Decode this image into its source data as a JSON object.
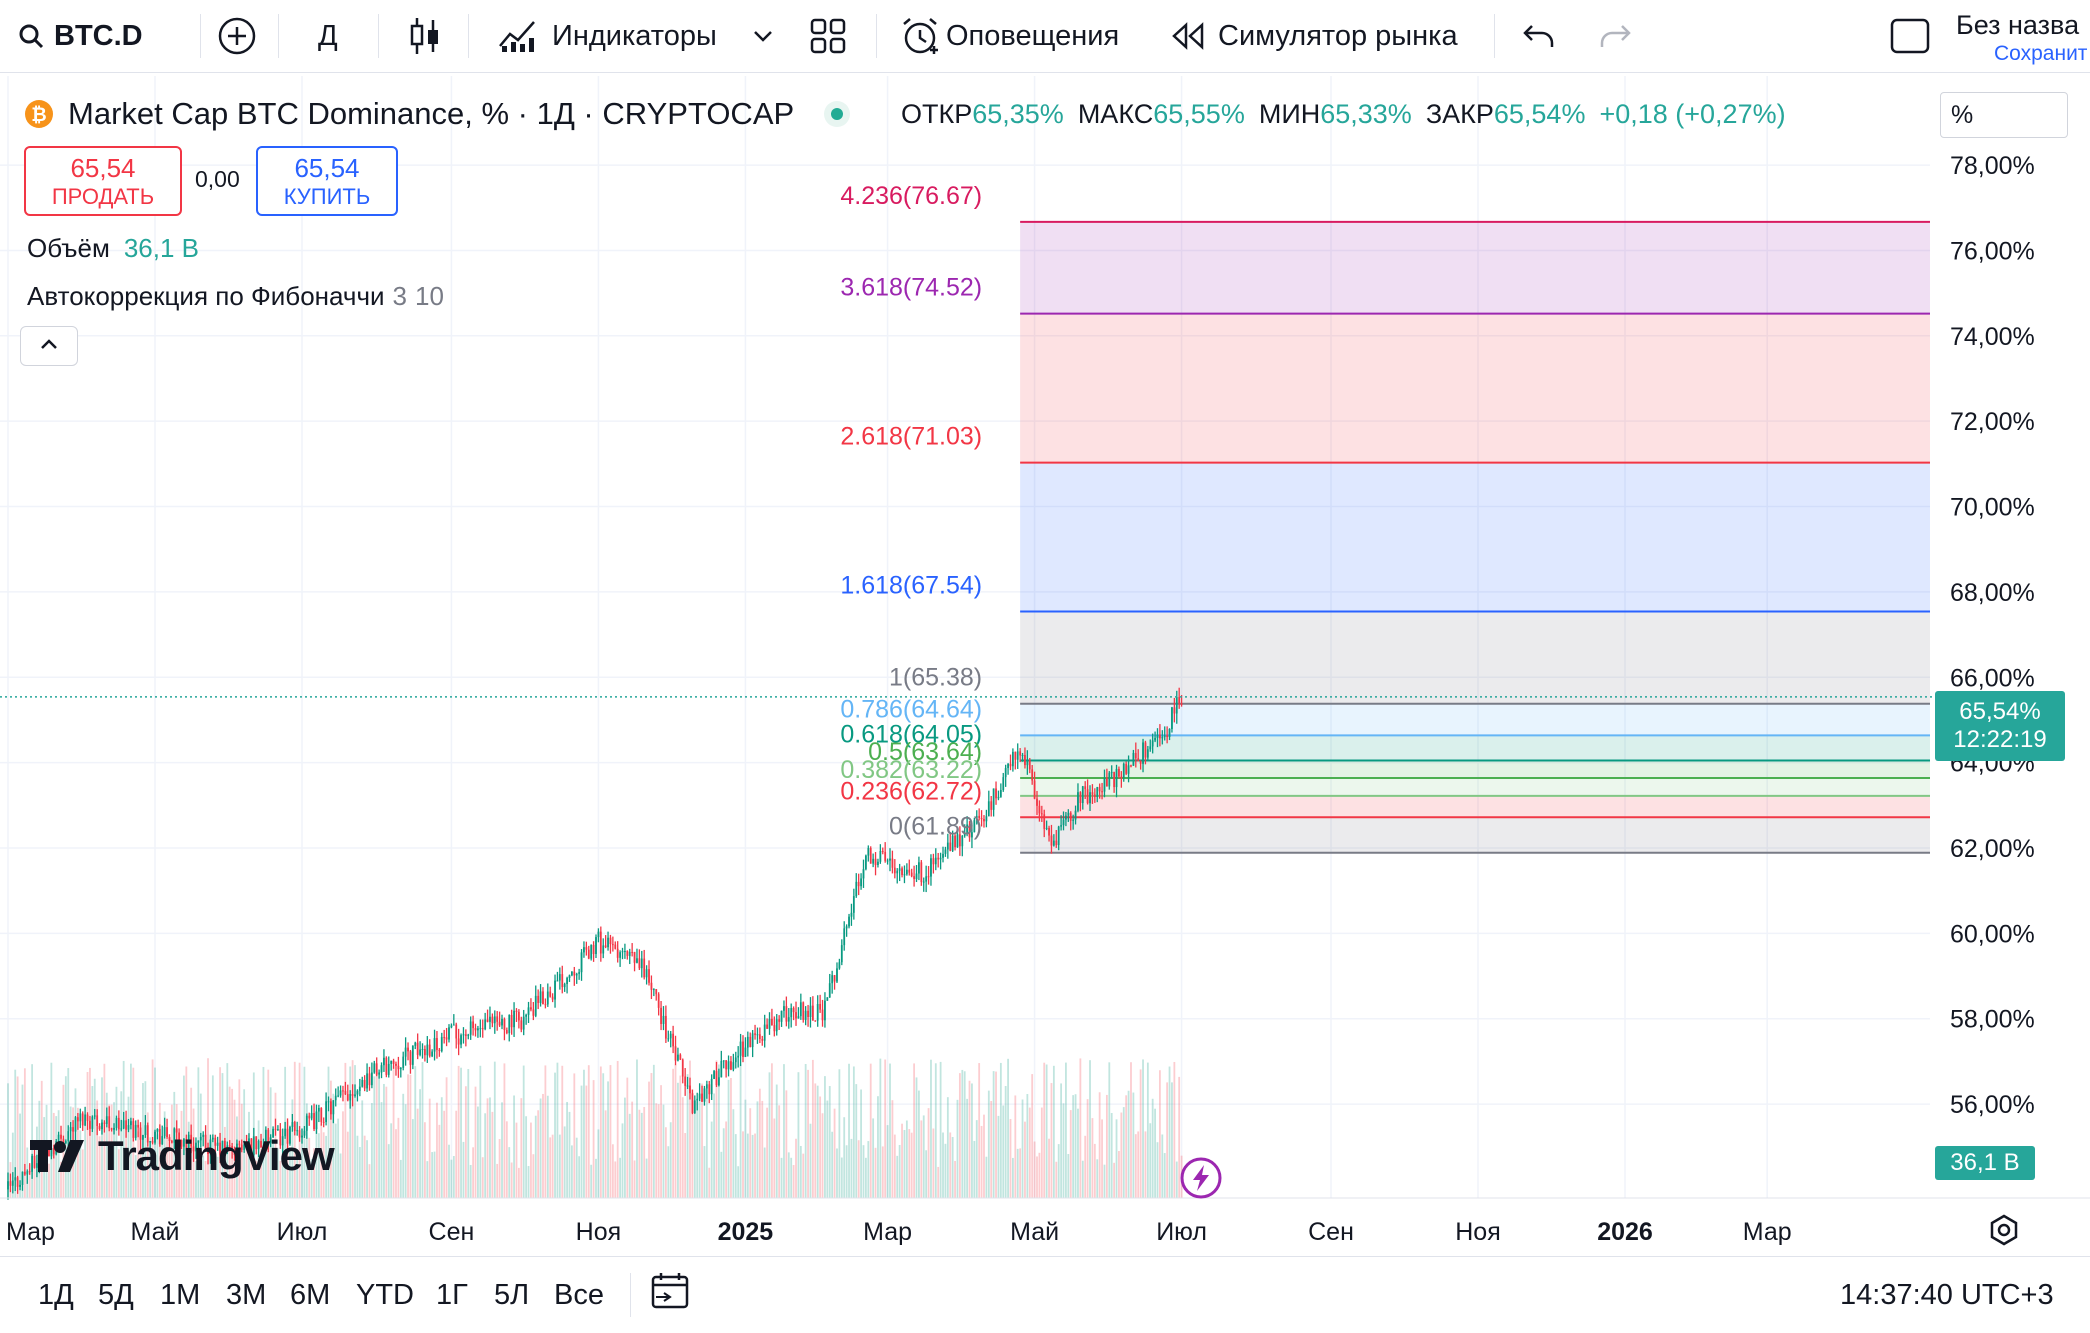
{
  "toolbar": {
    "symbol": "BTC.D",
    "interval": "Д",
    "indicators_label": "Индикаторы",
    "alerts_label": "Оповещения",
    "replay_label": "Симулятор рынка",
    "layout_name": "Без назва",
    "save_label": "Сохранит"
  },
  "legend": {
    "title": "Market Cap BTC Dominance, % · 1Д · CRYPTOCAP",
    "open_label": "ОТКР",
    "open_value": "65,35%",
    "high_label": "МАКС",
    "high_value": "65,55%",
    "low_label": "МИН",
    "low_value": "65,33%",
    "close_label": "ЗАКР",
    "close_value": "65,54%",
    "change": "+0,18 (+0,27%)",
    "sell_price": "65,54",
    "sell_label": "ПРОДАТЬ",
    "spread": "0,00",
    "buy_price": "65,54",
    "buy_label": "КУПИТЬ",
    "volume_label": "Объём",
    "volume_value": "36,1 B",
    "fib_study_label": "Автокоррекция по Фибоначчи",
    "fib_study_p1": "3",
    "fib_study_p2": "10"
  },
  "scale_mode": "%",
  "price_tag": {
    "value": "65,54%",
    "countdown": "12:22:19",
    "color": "#26a69a"
  },
  "volume_tag": {
    "value": "36,1 B",
    "color": "#26a69a"
  },
  "watermark": "TradingView",
  "bottom": {
    "ranges": [
      "1Д",
      "5Д",
      "1М",
      "3М",
      "6М",
      "YTD",
      "1Г",
      "5Л",
      "Все"
    ],
    "clock": "14:37:40 UTC+3"
  },
  "chart_data": {
    "type": "candlestick",
    "title": "Market Cap BTC Dominance, %",
    "interval": "1Д",
    "y_axis": {
      "ticks": [
        "78,00%",
        "76,00%",
        "74,00%",
        "72,00%",
        "70,00%",
        "68,00%",
        "66,00%",
        "64,00%",
        "62,00%",
        "60,00%",
        "58,00%",
        "56,00%"
      ],
      "ylim": [
        53.8,
        78.4
      ]
    },
    "x_axis": {
      "ticks": [
        "Мар",
        "Май",
        "Июл",
        "Сен",
        "Ноя",
        "2025",
        "Мар",
        "Май",
        "Июл",
        "Сен",
        "Ноя",
        "2026",
        "Мар"
      ],
      "bold_ticks": [
        "2025",
        "2026"
      ]
    },
    "series_approx": {
      "dates": [
        "2024-03-01",
        "2024-04-01",
        "2024-05-01",
        "2024-06-01",
        "2024-07-01",
        "2024-08-01",
        "2024-09-01",
        "2024-10-01",
        "2024-11-01",
        "2024-11-20",
        "2024-12-10",
        "2025-01-01",
        "2025-01-20",
        "2025-02-03",
        "2025-02-20",
        "2025-03-15",
        "2025-04-10",
        "2025-04-25",
        "2025-05-08",
        "2025-05-20",
        "2025-06-05",
        "2025-06-25",
        "2025-07-01"
      ],
      "close": [
        54.0,
        55.7,
        55.3,
        54.9,
        55.4,
        56.8,
        57.6,
        58.0,
        59.8,
        59.2,
        56.0,
        57.4,
        58.2,
        58.2,
        61.9,
        61.4,
        62.7,
        64.4,
        62.0,
        63.2,
        63.7,
        64.8,
        65.54
      ]
    },
    "fibonacci": [
      {
        "level": "4.236",
        "price": 76.67,
        "label": "4.236(76.67)",
        "color": "#d81b60"
      },
      {
        "level": "3.618",
        "price": 74.52,
        "label": "3.618(74.52)",
        "color": "#9c27b0"
      },
      {
        "level": "2.618",
        "price": 71.03,
        "label": "2.618(71.03)",
        "color": "#f23645"
      },
      {
        "level": "1.618",
        "price": 67.54,
        "label": "1.618(67.54)",
        "color": "#2962ff"
      },
      {
        "level": "1",
        "price": 65.38,
        "label": "1(65.38)",
        "color": "#787b86"
      },
      {
        "level": "0.786",
        "price": 64.64,
        "label": "0.786(64.64)",
        "color": "#64b5f6"
      },
      {
        "level": "0.618",
        "price": 64.05,
        "label": "0.618(64.05)",
        "color": "#089981"
      },
      {
        "level": "0.5",
        "price": 63.64,
        "label": "0.5(63.64)",
        "color": "#4caf50"
      },
      {
        "level": "0.382",
        "price": 63.22,
        "label": "0.382(63.22)",
        "color": "#81c784"
      },
      {
        "level": "0.236",
        "price": 62.72,
        "label": "0.236(62.72)",
        "color": "#f23645"
      },
      {
        "level": "0",
        "price": 61.89,
        "label": "0(61.89)",
        "color": "#787b86"
      }
    ],
    "current_price": 65.54
  }
}
